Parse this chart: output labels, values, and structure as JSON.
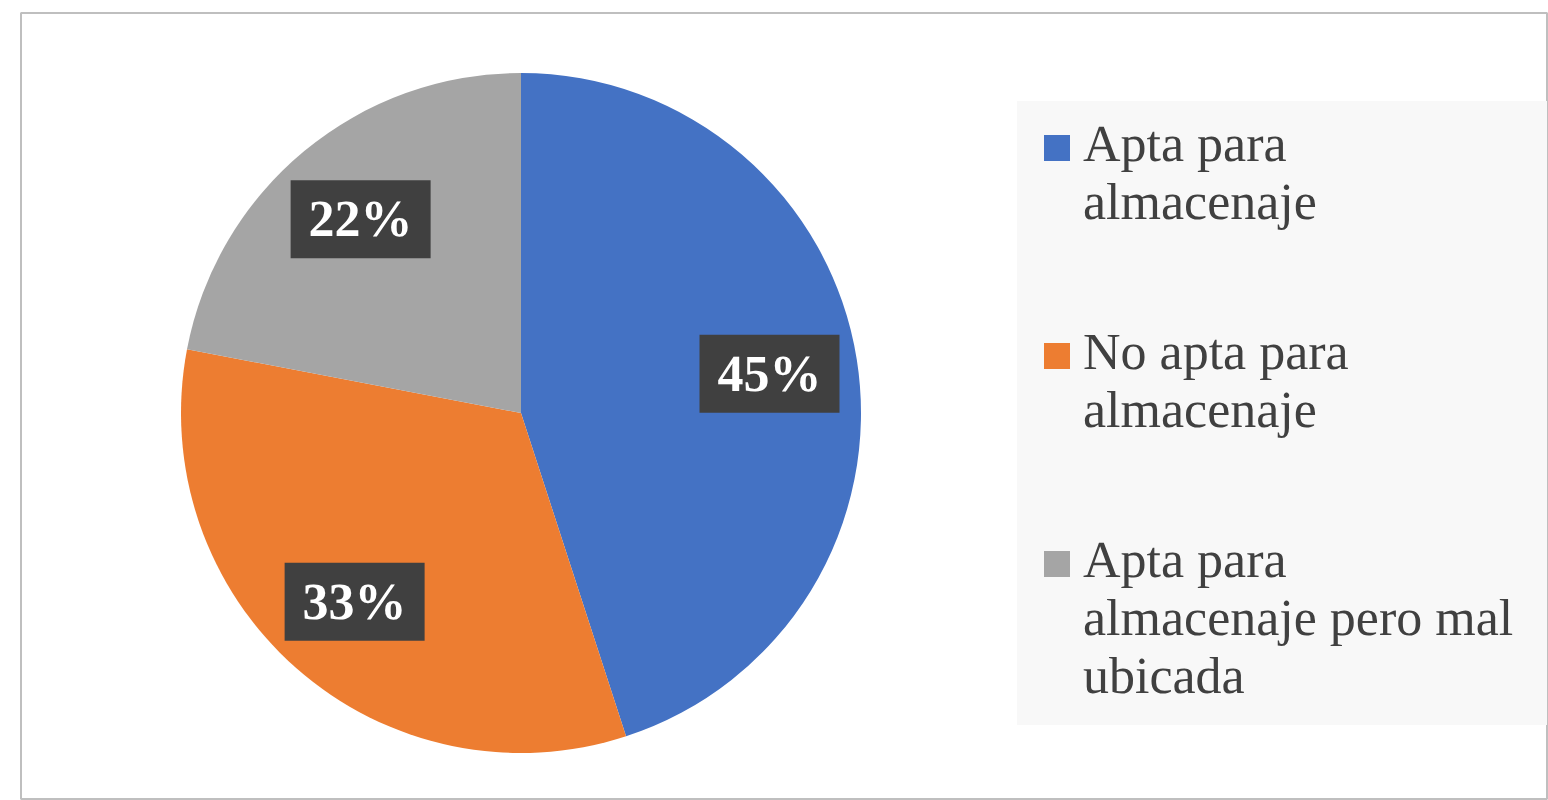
{
  "chart_data": {
    "type": "pie",
    "categories": [
      "Apta para almacenaje",
      "No apta para almacenaje",
      "Apta para almacenaje pero mal ubicada"
    ],
    "values": [
      45,
      33,
      22
    ],
    "colors": [
      "#4472c4",
      "#ed7d31",
      "#a5a5a5"
    ],
    "value_labels": [
      "45%",
      "33%",
      "22%"
    ],
    "legend": "right"
  }
}
